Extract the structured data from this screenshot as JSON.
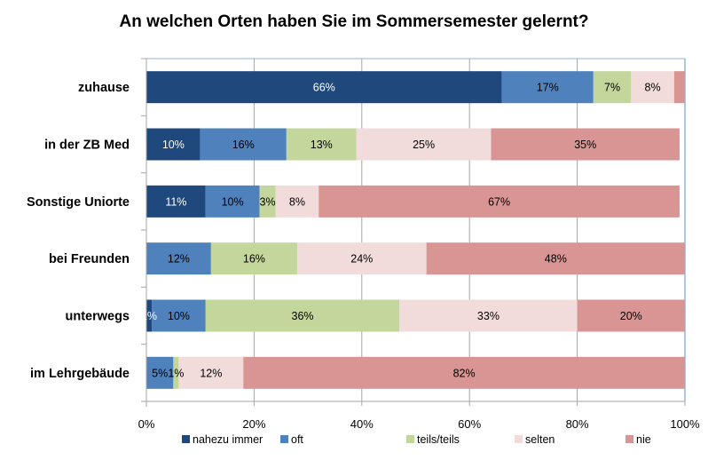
{
  "chart_data": {
    "type": "bar",
    "orientation": "horizontal",
    "stacked": "percent",
    "title": "An welchen Orten haben Sie im Sommersemester gelernt?",
    "xlabel": "",
    "ylabel": "",
    "xlim": [
      0,
      100
    ],
    "x_ticks": [
      "0%",
      "20%",
      "40%",
      "60%",
      "80%",
      "100%"
    ],
    "x_tick_values": [
      0,
      20,
      40,
      60,
      80,
      100
    ],
    "grid": true,
    "legend_position": "bottom",
    "categories": [
      "zuhause",
      "in der ZB Med",
      "Sonstige Uniorte",
      "bei Freunden",
      "unterwegs",
      "im Lehrgebäude"
    ],
    "series": [
      {
        "name": "nahezu immer",
        "color": "#1F497D",
        "label_color": "#FFFFFF",
        "values": [
          66,
          10,
          11,
          0,
          1,
          0
        ],
        "labels": [
          "66%",
          "10%",
          "11%",
          "",
          "1%",
          ""
        ]
      },
      {
        "name": "oft",
        "color": "#4F81BD",
        "label_color": "#000000",
        "values": [
          17,
          16,
          10,
          12,
          10,
          5
        ],
        "labels": [
          "17%",
          "16%",
          "10%",
          "12%",
          "10%",
          "5%"
        ]
      },
      {
        "name": "teils/teils",
        "color": "#C3D69B",
        "label_color": "#000000",
        "values": [
          7,
          13,
          3,
          16,
          36,
          1
        ],
        "labels": [
          "7%",
          "13%",
          "3%",
          "16%",
          "36%",
          "1%"
        ]
      },
      {
        "name": "selten",
        "color": "#F2DCDB",
        "label_color": "#000000",
        "values": [
          8,
          25,
          8,
          24,
          33,
          12
        ],
        "labels": [
          "8%",
          "25%",
          "8%",
          "24%",
          "33%",
          "12%"
        ]
      },
      {
        "name": "nie",
        "color": "#D99594",
        "label_color": "#000000",
        "values": [
          2,
          35,
          67,
          48,
          20,
          82
        ],
        "labels": [
          "",
          "35%",
          "67%",
          "48%",
          "20%",
          "82%"
        ]
      }
    ]
  }
}
